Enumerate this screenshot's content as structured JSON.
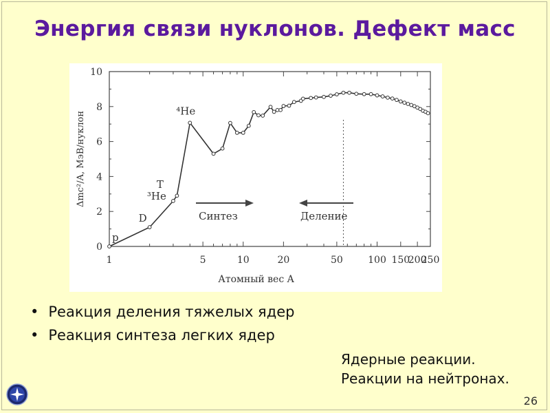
{
  "slide": {
    "title": "Энергия связи нуклонов. Дефект масс",
    "bullets": [
      "Реакция деления тяжелых ядер",
      "Реакция синтеза легких ядер"
    ],
    "note_lines": [
      "Ядерные реакции.",
      "Реакции на нейтронах."
    ],
    "page_number": "26",
    "accent_color": "#5b1a9e",
    "background_color": "#ffffcc",
    "logo_icon": "star-globe-icon"
  },
  "chart_data": {
    "type": "line",
    "xscale": "log",
    "xlim": [
      1,
      250
    ],
    "ylim": [
      0,
      10
    ],
    "xticks": [
      1,
      5,
      10,
      20,
      50,
      100,
      150,
      200,
      250
    ],
    "yticks": [
      0,
      2,
      4,
      6,
      8,
      10
    ],
    "ylabel": "Δmc²/A, МэВ/нуклон",
    "xlabel": "Атомный вес A",
    "series": [
      {
        "values": [
          [
            1,
            0
          ],
          [
            2,
            1.1
          ],
          [
            3,
            2.6
          ],
          [
            3.2,
            2.9
          ],
          [
            4,
            7.07
          ],
          [
            6,
            5.3
          ],
          [
            7,
            5.6
          ],
          [
            8,
            7.06
          ],
          [
            9,
            6.5
          ],
          [
            10,
            6.5
          ],
          [
            11,
            6.9
          ],
          [
            12,
            7.68
          ],
          [
            13,
            7.5
          ],
          [
            14,
            7.48
          ],
          [
            16,
            7.98
          ],
          [
            17,
            7.7
          ],
          [
            18,
            7.8
          ],
          [
            19,
            7.8
          ],
          [
            20,
            8.03
          ],
          [
            22,
            8.05
          ],
          [
            24,
            8.26
          ],
          [
            27,
            8.33
          ],
          [
            28,
            8.45
          ],
          [
            32,
            8.49
          ],
          [
            35,
            8.52
          ],
          [
            40,
            8.55
          ],
          [
            45,
            8.62
          ],
          [
            50,
            8.7
          ],
          [
            56,
            8.79
          ],
          [
            62,
            8.79
          ],
          [
            70,
            8.73
          ],
          [
            80,
            8.71
          ],
          [
            90,
            8.71
          ],
          [
            100,
            8.64
          ],
          [
            110,
            8.58
          ],
          [
            120,
            8.51
          ],
          [
            130,
            8.46
          ],
          [
            140,
            8.38
          ],
          [
            150,
            8.29
          ],
          [
            160,
            8.22
          ],
          [
            170,
            8.15
          ],
          [
            180,
            8.09
          ],
          [
            190,
            8.02
          ],
          [
            200,
            7.94
          ],
          [
            210,
            7.86
          ],
          [
            220,
            7.76
          ],
          [
            230,
            7.7
          ],
          [
            240,
            7.62
          ]
        ]
      }
    ],
    "divider_x": 56,
    "annotations": [
      {
        "text": "p",
        "x": 1,
        "y": 0
      },
      {
        "text": "D",
        "x": 2,
        "y": 1.1
      },
      {
        "text": "T",
        "x": 3,
        "y": 2.8
      },
      {
        "text": "³He",
        "x": 3,
        "y": 2.6
      },
      {
        "text": "⁴He",
        "x": 4,
        "y": 7.07
      }
    ],
    "arrows": [
      {
        "text": "Синтез",
        "direction": "right"
      },
      {
        "text": "Деление",
        "direction": "left"
      }
    ],
    "line_color": "#333333",
    "grid": false
  }
}
